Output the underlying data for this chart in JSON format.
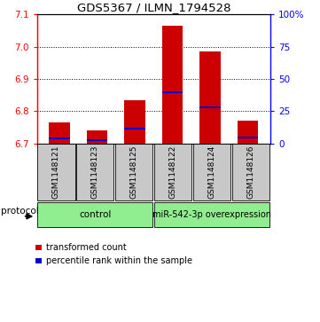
{
  "title": "GDS5367 / ILMN_1794528",
  "samples": [
    "GSM1148121",
    "GSM1148123",
    "GSM1148125",
    "GSM1148122",
    "GSM1148124",
    "GSM1148126"
  ],
  "transformed_counts": [
    6.765,
    6.74,
    6.835,
    7.065,
    6.985,
    6.77
  ],
  "percentile_values": [
    6.715,
    6.71,
    6.745,
    6.858,
    6.812,
    6.718
  ],
  "ylim_left": [
    6.7,
    7.1
  ],
  "right_ticks": [
    0,
    25,
    50,
    75,
    100
  ],
  "right_tick_labels": [
    "0",
    "25",
    "50",
    "75",
    "100%"
  ],
  "left_ticks": [
    6.7,
    6.8,
    6.9,
    7.0,
    7.1
  ],
  "bar_color": "#CC0000",
  "percentile_color": "#0000CC",
  "bar_width": 0.55,
  "background_gray": "#C8C8C8",
  "group_green": "#90EE90",
  "control_label": "control",
  "overexpr_label": "miR-542-3p overexpression",
  "protocol_label": "protocol",
  "legend_label_red": "transformed count",
  "legend_label_blue": "percentile rank within the sample",
  "title_fontsize": 9.5,
  "tick_fontsize": 7.5,
  "label_fontsize": 7,
  "sample_fontsize": 6.5,
  "group_fontsize": 7.5,
  "legend_fontsize": 7
}
